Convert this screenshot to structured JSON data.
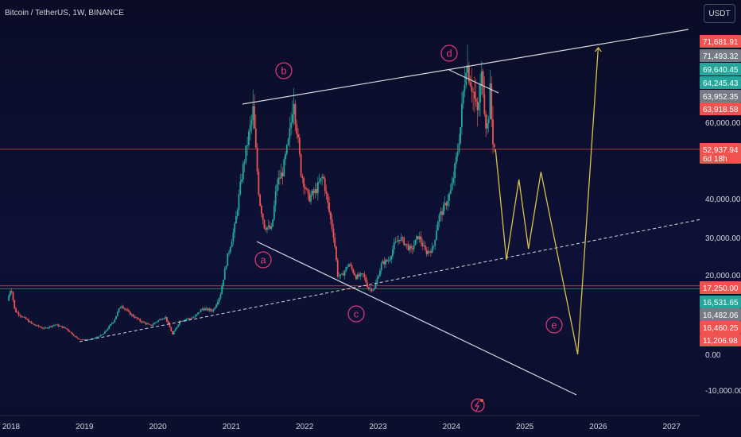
{
  "header": {
    "title": "Bitcoin / TetherUS, 1W, BINANCE",
    "currency": "USDT"
  },
  "colors": {
    "background": "#0b0e2a",
    "up": "#26a69a",
    "down": "#ef5350",
    "trendline": "#d8d8e0",
    "projection": "#d8c24a",
    "wave_label": "#e23a78",
    "hline": "#ef5350"
  },
  "chart_data": {
    "type": "candlestick",
    "title": "Bitcoin / TetherUS, 1W, BINANCE",
    "x_ticks": [
      "2018",
      "2019",
      "2020",
      "2021",
      "2022",
      "2023",
      "2024",
      "2025",
      "2026",
      "2027"
    ],
    "y_ticks": [
      "60,000.00",
      "40,000.00",
      "30,000.00",
      "20,000.00",
      "0.00",
      "-10,000.00"
    ],
    "price_tags": [
      {
        "label": "71,681.91",
        "bg": "#ef5350",
        "fg": "#ffffff"
      },
      {
        "label": "71,493.32",
        "bg": "#787b86",
        "fg": "#ffffff"
      },
      {
        "label": "69,640.45",
        "bg": "#26a69a",
        "fg": "#ffffff"
      },
      {
        "label": "64,245.43",
        "bg": "#26a69a",
        "fg": "#ffffff"
      },
      {
        "label": "63,952.35",
        "bg": "#787b86",
        "fg": "#ffffff"
      },
      {
        "label": "63,918.58",
        "bg": "#ef5350",
        "fg": "#ffffff"
      },
      {
        "label": "52,937.94",
        "bg": "#ef5350",
        "fg": "#ffffff",
        "sub": "6d 18h"
      },
      {
        "label": "17,250.00",
        "bg": "#ef5350",
        "fg": "#ffffff"
      },
      {
        "label": "16,531.65",
        "bg": "#26a69a",
        "fg": "#ffffff"
      },
      {
        "label": "16,482.06",
        "bg": "#787b86",
        "fg": "#ffffff"
      },
      {
        "label": "16,460.25",
        "bg": "#ef5350",
        "fg": "#ffffff"
      },
      {
        "label": "11,206.98",
        "bg": "#ef5350",
        "fg": "#ffffff"
      }
    ],
    "wave_labels": [
      "a",
      "b",
      "c",
      "d",
      "e"
    ],
    "price_path": [
      [
        2017.95,
        13500
      ],
      [
        2018.0,
        17000
      ],
      [
        2018.05,
        11000
      ],
      [
        2018.15,
        9500
      ],
      [
        2018.3,
        7500
      ],
      [
        2018.45,
        6500
      ],
      [
        2018.6,
        7500
      ],
      [
        2018.75,
        6500
      ],
      [
        2018.9,
        4000
      ],
      [
        2019.0,
        3600
      ],
      [
        2019.1,
        3800
      ],
      [
        2019.25,
        5000
      ],
      [
        2019.4,
        8500
      ],
      [
        2019.5,
        12500
      ],
      [
        2019.6,
        10500
      ],
      [
        2019.75,
        8500
      ],
      [
        2019.9,
        7200
      ],
      [
        2020.0,
        8500
      ],
      [
        2020.1,
        9500
      ],
      [
        2020.2,
        5000
      ],
      [
        2020.3,
        8500
      ],
      [
        2020.5,
        9400
      ],
      [
        2020.6,
        11500
      ],
      [
        2020.75,
        11000
      ],
      [
        2020.85,
        15000
      ],
      [
        2020.95,
        25000
      ],
      [
        2021.05,
        33000
      ],
      [
        2021.15,
        47000
      ],
      [
        2021.25,
        58000
      ],
      [
        2021.3,
        62000
      ],
      [
        2021.38,
        40000
      ],
      [
        2021.45,
        33000
      ],
      [
        2021.55,
        32000
      ],
      [
        2021.62,
        44000
      ],
      [
        2021.7,
        47000
      ],
      [
        2021.78,
        55000
      ],
      [
        2021.85,
        65000
      ],
      [
        2021.9,
        57000
      ],
      [
        2021.95,
        47000
      ],
      [
        2022.05,
        40000
      ],
      [
        2022.15,
        42000
      ],
      [
        2022.25,
        46000
      ],
      [
        2022.32,
        38000
      ],
      [
        2022.4,
        30000
      ],
      [
        2022.45,
        20000
      ],
      [
        2022.5,
        19500
      ],
      [
        2022.6,
        23000
      ],
      [
        2022.7,
        19500
      ],
      [
        2022.8,
        20000
      ],
      [
        2022.87,
        16500
      ],
      [
        2022.95,
        16500
      ],
      [
        2023.05,
        23000
      ],
      [
        2023.15,
        24000
      ],
      [
        2023.22,
        28000
      ],
      [
        2023.3,
        30000
      ],
      [
        2023.45,
        26500
      ],
      [
        2023.55,
        30500
      ],
      [
        2023.65,
        26000
      ],
      [
        2023.75,
        27000
      ],
      [
        2023.82,
        35000
      ],
      [
        2023.9,
        37500
      ],
      [
        2024.0,
        42500
      ],
      [
        2024.08,
        52000
      ],
      [
        2024.15,
        63000
      ],
      [
        2024.2,
        70000
      ],
      [
        2024.28,
        66000
      ],
      [
        2024.35,
        61000
      ],
      [
        2024.42,
        68000
      ],
      [
        2024.48,
        58000
      ],
      [
        2024.53,
        65000
      ],
      [
        2024.57,
        54000
      ],
      [
        2024.6,
        53000
      ]
    ],
    "projection_path": [
      [
        2024.6,
        53000
      ],
      [
        2024.75,
        24000
      ],
      [
        2024.92,
        45000
      ],
      [
        2025.05,
        27000
      ],
      [
        2025.22,
        47000
      ],
      [
        2025.72,
        0
      ],
      [
        2026.0,
        72000
      ]
    ],
    "horizontal_lines": [
      17250,
      16482.06,
      52937.94
    ]
  }
}
